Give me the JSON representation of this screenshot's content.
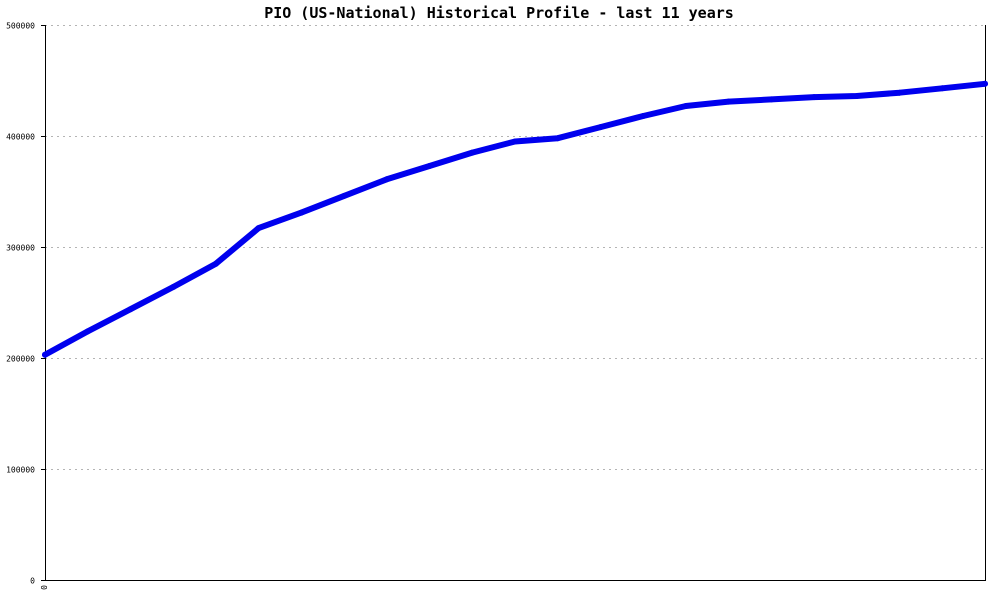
{
  "chart_data": {
    "type": "line",
    "title": "PIO (US-National) Historical Profile - last 11 years",
    "xlabel": "",
    "ylabel": "",
    "x_tick_labels": [
      "0"
    ],
    "x": [
      0,
      1,
      2,
      3,
      4,
      5,
      6,
      7,
      8,
      9,
      10,
      11,
      12,
      13,
      14,
      15,
      16,
      17,
      18,
      19,
      20,
      21,
      22
    ],
    "xlim": [
      0,
      22
    ],
    "ylim": [
      0,
      500000
    ],
    "y_ticks": [
      0,
      100000,
      200000,
      300000,
      400000,
      500000
    ],
    "y_tick_labels": [
      "0",
      "100000",
      "200000",
      "300000",
      "400000",
      "500000"
    ],
    "grid": true,
    "series": [
      {
        "color": "#0000ee",
        "values": [
          203000,
          224000,
          244000,
          264000,
          285000,
          317000,
          331000,
          346000,
          361000,
          373000,
          385000,
          395000,
          398000,
          408000,
          418000,
          427000,
          431000,
          433000,
          435000,
          436000,
          439000,
          443000,
          447000
        ]
      }
    ]
  }
}
